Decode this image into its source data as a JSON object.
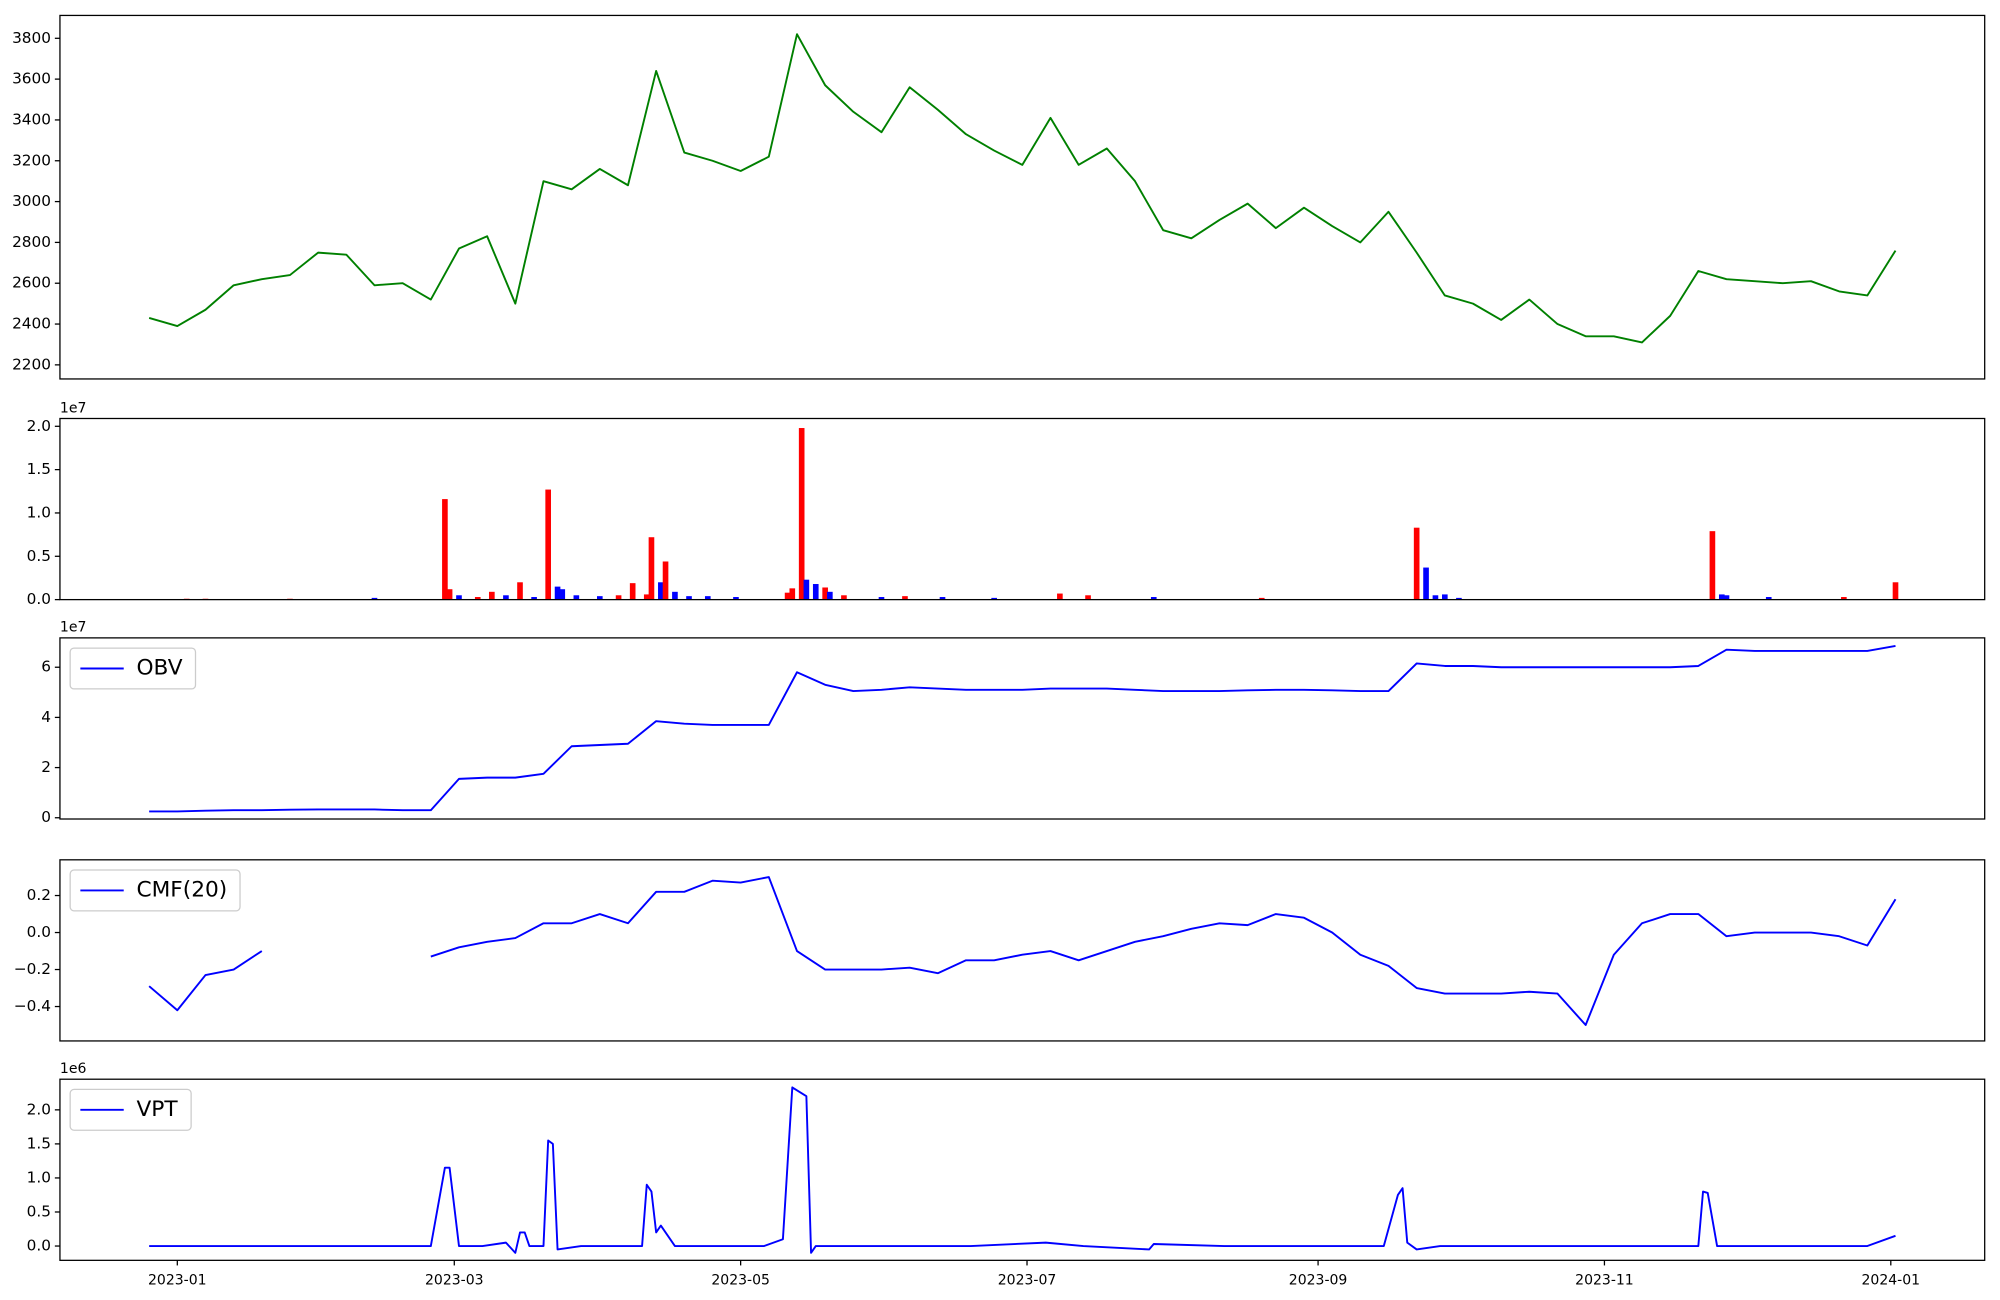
{
  "chart_data": [
    {
      "type": "line",
      "xlim": [
        19333,
        19743
      ],
      "ylim": [
        2131,
        3912
      ],
      "yticks": [
        2200,
        2400,
        2600,
        2800,
        3000,
        3200,
        3400,
        3600,
        3800
      ],
      "x": [
        19352,
        19358,
        19364,
        19370,
        19376,
        19382,
        19388,
        19394,
        19400,
        19406,
        19412,
        19418,
        19424,
        19430,
        19436,
        19442,
        19448,
        19454,
        19460,
        19466,
        19472,
        19478,
        19484,
        19490,
        19496,
        19502,
        19508,
        19514,
        19520,
        19526,
        19532,
        19538,
        19544,
        19550,
        19556,
        19562,
        19568,
        19574,
        19580,
        19586,
        19592,
        19598,
        19604,
        19610,
        19616,
        19622,
        19628,
        19634,
        19640,
        19646,
        19652,
        19658,
        19664,
        19670,
        19676,
        19682,
        19688,
        19694,
        19700,
        19706,
        19712,
        19718,
        19724
      ],
      "series": [
        {
          "color": "green",
          "values": [
            2430,
            2390,
            2470,
            2590,
            2620,
            2640,
            2750,
            2740,
            2590,
            2600,
            2520,
            2770,
            2830,
            2500,
            3100,
            3060,
            3160,
            3080,
            3640,
            3240,
            3200,
            3150,
            3220,
            3820,
            3570,
            3440,
            3340,
            3560,
            3450,
            3330,
            3250,
            3180,
            3410,
            3180,
            3260,
            3100,
            2860,
            2820,
            2910,
            2990,
            2870,
            2970,
            2880,
            2800,
            2950,
            2750,
            2540,
            2500,
            2420,
            2520,
            2400,
            2340,
            2340,
            2310,
            2440,
            2660,
            2620,
            2610,
            2600,
            2610,
            2560,
            2540,
            2760
          ]
        }
      ]
    },
    {
      "type": "bar",
      "offset_label": "1e7",
      "xlim": [
        19333,
        19743
      ],
      "ylim": [
        0,
        2.09
      ],
      "yticks": [
        {
          "value": 0,
          "label": "0.0"
        },
        {
          "value": 0.5,
          "label": "0.5"
        },
        {
          "value": 1,
          "label": "1.0"
        },
        {
          "value": 1.5,
          "label": "1.5"
        },
        {
          "value": 2,
          "label": "2.0"
        }
      ],
      "x": [
        19360,
        19364,
        19382,
        19400,
        19415,
        19416,
        19418,
        19422,
        19425,
        19428,
        19431,
        19434,
        19437,
        19439,
        19440,
        19443,
        19448,
        19452,
        19455,
        19458,
        19459,
        19461,
        19462,
        19464,
        19467,
        19471,
        19477,
        19488,
        19489,
        19491,
        19492,
        19494,
        19496,
        19497,
        19500,
        19508,
        19513,
        19521,
        19532,
        19546,
        19552,
        19566,
        19589,
        19622,
        19624,
        19626,
        19628,
        19631,
        19685,
        19687,
        19688,
        19697,
        19713,
        19724
      ],
      "values": [
        0.01,
        0.01,
        0.01,
        0.02,
        1.16,
        0.12,
        0.05,
        0.03,
        0.09,
        0.05,
        0.2,
        0.03,
        1.27,
        0.15,
        0.12,
        0.05,
        0.04,
        0.05,
        0.19,
        0.06,
        0.72,
        0.2,
        0.44,
        0.09,
        0.04,
        0.04,
        0.03,
        0.08,
        0.13,
        1.98,
        0.23,
        0.18,
        0.14,
        0.09,
        0.05,
        0.03,
        0.04,
        0.03,
        0.02,
        0.07,
        0.05,
        0.03,
        0.02,
        0.83,
        0.37,
        0.05,
        0.06,
        0.02,
        0.79,
        0.06,
        0.05,
        0.03,
        0.03,
        0.2
      ],
      "colors": [
        "red",
        "red",
        "red",
        "blue",
        "red",
        "red",
        "blue",
        "red",
        "red",
        "blue",
        "red",
        "blue",
        "red",
        "blue",
        "blue",
        "blue",
        "blue",
        "red",
        "red",
        "red",
        "red",
        "blue",
        "red",
        "blue",
        "blue",
        "blue",
        "blue",
        "red",
        "red",
        "red",
        "blue",
        "blue",
        "red",
        "blue",
        "red",
        "blue",
        "red",
        "blue",
        "blue",
        "red",
        "red",
        "blue",
        "red",
        "red",
        "blue",
        "blue",
        "blue",
        "blue",
        "red",
        "blue",
        "blue",
        "blue",
        "red",
        "red"
      ]
    },
    {
      "type": "line",
      "offset_label": "1e7",
      "legend": "upper left",
      "xlim": [
        19333,
        19743
      ],
      "ylim": [
        -0.05,
        7.17
      ],
      "yticks": [
        0,
        2,
        4,
        6
      ],
      "x": [
        19352,
        19358,
        19364,
        19370,
        19376,
        19382,
        19388,
        19394,
        19400,
        19406,
        19412,
        19418,
        19424,
        19430,
        19436,
        19442,
        19448,
        19454,
        19460,
        19466,
        19472,
        19478,
        19484,
        19490,
        19496,
        19502,
        19508,
        19514,
        19520,
        19526,
        19532,
        19538,
        19544,
        19550,
        19556,
        19562,
        19568,
        19574,
        19580,
        19586,
        19592,
        19598,
        19604,
        19610,
        19616,
        19622,
        19628,
        19634,
        19640,
        19646,
        19652,
        19658,
        19664,
        19670,
        19676,
        19682,
        19688,
        19694,
        19700,
        19706,
        19712,
        19718,
        19724
      ],
      "series": [
        {
          "name": "OBV",
          "color": "blue",
          "values": [
            0.25,
            0.25,
            0.28,
            0.3,
            0.3,
            0.32,
            0.33,
            0.33,
            0.33,
            0.3,
            0.3,
            1.55,
            1.6,
            1.6,
            1.75,
            2.85,
            2.9,
            2.95,
            3.85,
            3.75,
            3.7,
            3.7,
            3.7,
            5.8,
            5.3,
            5.05,
            5.1,
            5.2,
            5.15,
            5.1,
            5.1,
            5.1,
            5.15,
            5.15,
            5.15,
            5.1,
            5.05,
            5.05,
            5.05,
            5.08,
            5.1,
            5.1,
            5.08,
            5.05,
            5.05,
            6.15,
            6.05,
            6.05,
            6.0,
            6.0,
            6.0,
            6.0,
            6.0,
            6.0,
            6.0,
            6.05,
            6.7,
            6.65,
            6.65,
            6.65,
            6.65,
            6.65,
            6.85
          ]
        }
      ]
    },
    {
      "type": "line",
      "legend": "upper left",
      "xlim": [
        19333,
        19743
      ],
      "ylim": [
        -0.586,
        0.393
      ],
      "yticks": [
        {
          "value": -0.4,
          "label": "−0.4"
        },
        {
          "value": -0.2,
          "label": "−0.2"
        },
        {
          "value": 0,
          "label": "0.0"
        },
        {
          "value": 0.2,
          "label": "0.2"
        }
      ],
      "x": [
        19352,
        19358,
        19364,
        19370,
        19376,
        19382,
        19388,
        19394,
        19400,
        19406,
        19412,
        19418,
        19424,
        19430,
        19436,
        19442,
        19448,
        19454,
        19460,
        19466,
        19472,
        19478,
        19484,
        19490,
        19496,
        19502,
        19508,
        19514,
        19520,
        19526,
        19532,
        19538,
        19544,
        19550,
        19556,
        19562,
        19568,
        19574,
        19580,
        19586,
        19592,
        19598,
        19604,
        19610,
        19616,
        19622,
        19628,
        19634,
        19640,
        19646,
        19652,
        19658,
        19664,
        19670,
        19676,
        19682,
        19688,
        19694,
        19700,
        19706,
        19712,
        19718,
        19724
      ],
      "series": [
        {
          "name": "CMF(20)",
          "color": "blue",
          "values": [
            -0.29,
            -0.42,
            -0.23,
            -0.2,
            -0.1,
            null,
            null,
            null,
            null,
            null,
            -0.13,
            -0.08,
            -0.05,
            -0.03,
            0.05,
            0.05,
            0.1,
            0.05,
            0.22,
            0.22,
            0.28,
            0.27,
            0.3,
            -0.1,
            -0.2,
            -0.2,
            -0.2,
            -0.19,
            -0.22,
            -0.15,
            -0.15,
            -0.12,
            -0.1,
            -0.15,
            -0.1,
            -0.05,
            -0.02,
            0.02,
            0.05,
            0.04,
            0.1,
            0.08,
            0.0,
            -0.12,
            -0.18,
            -0.3,
            -0.33,
            -0.33,
            -0.33,
            -0.32,
            -0.33,
            -0.5,
            -0.12,
            0.05,
            0.1,
            0.1,
            -0.02,
            0,
            0,
            0,
            -0.02,
            -0.07,
            0.18
          ]
        }
      ]
    },
    {
      "type": "line",
      "offset_label": "1e6",
      "legend": "upper left",
      "xlim": [
        19333,
        19743
      ],
      "ylim": [
        -0.21,
        2.45
      ],
      "yticks": [
        {
          "value": 0,
          "label": "0.0"
        },
        {
          "value": 0.5,
          "label": "0.5"
        },
        {
          "value": 1,
          "label": "1.0"
        },
        {
          "value": 1.5,
          "label": "1.5"
        },
        {
          "value": 2,
          "label": "2.0"
        }
      ],
      "xticks": [
        {
          "value": 19358,
          "label": "2023-01"
        },
        {
          "value": 19417,
          "label": "2023-03"
        },
        {
          "value": 19478,
          "label": "2023-05"
        },
        {
          "value": 19539,
          "label": "2023-07"
        },
        {
          "value": 19601,
          "label": "2023-09"
        },
        {
          "value": 19662,
          "label": "2023-11"
        },
        {
          "value": 19723,
          "label": "2024-01"
        }
      ],
      "x": [
        19352,
        19364,
        19388,
        19402,
        19412,
        19415,
        19416,
        19418,
        19423,
        19428,
        19430,
        19431,
        19432,
        19433,
        19436,
        19437,
        19438,
        19439,
        19444,
        19451,
        19457,
        19458,
        19459,
        19460,
        19461,
        19464,
        19472,
        19483,
        19487,
        19489,
        19492,
        19493,
        19494,
        19508,
        19516,
        19527,
        19543,
        19551,
        19565,
        19566,
        19581,
        19605,
        19615,
        19618,
        19619,
        19620,
        19622,
        19627,
        19646,
        19673,
        19682,
        19683,
        19684,
        19686,
        19706,
        19718,
        19724
      ],
      "series": [
        {
          "name": "VPT",
          "color": "blue",
          "values": [
            0,
            0,
            0,
            0,
            0,
            1.15,
            1.15,
            0,
            0,
            0.05,
            -0.1,
            0.2,
            0.2,
            0,
            0,
            1.55,
            1.5,
            -0.05,
            0,
            0,
            0,
            0.9,
            0.8,
            0.2,
            0.3,
            0,
            0,
            0,
            0.1,
            2.33,
            2.2,
            -0.1,
            0,
            0,
            0,
            0,
            0.05,
            0,
            -0.05,
            0.03,
            0,
            0,
            0,
            0.75,
            0.85,
            0.05,
            -0.05,
            0,
            0,
            0,
            0,
            0.8,
            0.78,
            0,
            0,
            0,
            0.15
          ]
        }
      ]
    }
  ]
}
